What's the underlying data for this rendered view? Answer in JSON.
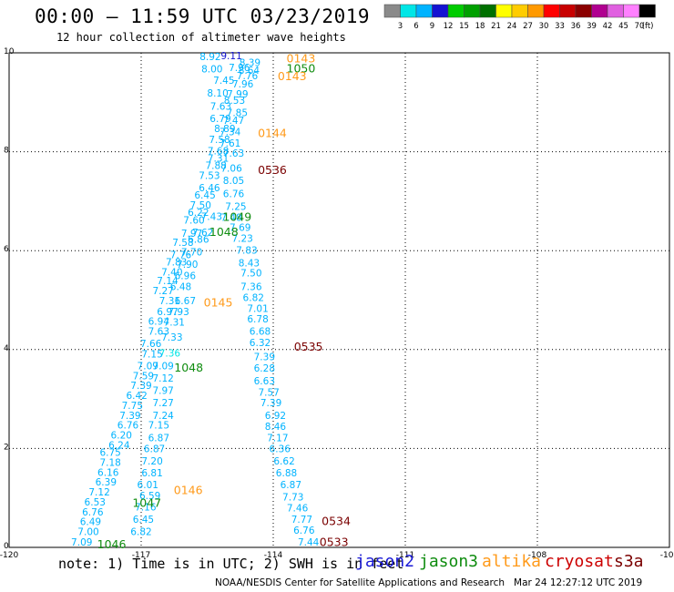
{
  "header": {
    "title": "00:00 – 11:59 UTC 03/23/2019",
    "subtitle": "12 hour collection of altimeter wave heights"
  },
  "footer": {
    "note": "note: 1) Time is in UTC; 2) SWH is in feet",
    "credit": "NOAA/NESDIS Center for Satellite Applications and Research   Mar 24 12:27:12 UTC 2019"
  },
  "satellites": [
    {
      "name": "jason2",
      "color": "#1a1ad6"
    },
    {
      "name": "jason3",
      "color": "#0f8c0f"
    },
    {
      "name": "altika",
      "color": "#ff9a1a"
    },
    {
      "name": "cryosat",
      "color": "#cc0000"
    },
    {
      "name": "s3a",
      "color": "#7a0000"
    }
  ],
  "colorbar": {
    "unit": "(ft)",
    "labels": [
      "3",
      "6",
      "9",
      "12",
      "15",
      "18",
      "21",
      "24",
      "27",
      "30",
      "33",
      "36",
      "39",
      "42",
      "45",
      "70"
    ],
    "colors": [
      "#8a8a8a",
      "#00e6e6",
      "#00b3ff",
      "#1414d2",
      "#00cc00",
      "#00a000",
      "#007000",
      "#ffff00",
      "#ffcc00",
      "#ff9900",
      "#ff0000",
      "#c80000",
      "#8b0000",
      "#b00090",
      "#e060e0",
      "#ff80ff",
      "#000000"
    ]
  },
  "chart_data": {
    "type": "scatter",
    "xlim": [
      -120,
      -105
    ],
    "ylim": [
      0,
      10
    ],
    "xticks": [
      "-120",
      "-117",
      "-114",
      "-111",
      "-108",
      "-105"
    ],
    "xtick_values": [
      -120,
      -117,
      -114,
      -111,
      -108,
      -105
    ],
    "yticks": [
      "0",
      "2",
      "4",
      "6",
      "8",
      "10"
    ],
    "ytick_values": [
      0,
      2,
      4,
      6,
      8,
      10
    ],
    "grid": true,
    "time_labels": [
      {
        "text": "0143",
        "x": -113.7,
        "y": 9.81,
        "color": "#ff9a1a"
      },
      {
        "text": "1050",
        "x": -113.7,
        "y": 9.6,
        "color": "#0f8c0f"
      },
      {
        "text": "0143",
        "x": -113.9,
        "y": 9.45,
        "color": "#ff9a1a"
      },
      {
        "text": "0144",
        "x": -114.35,
        "y": 8.3,
        "color": "#ff9a1a"
      },
      {
        "text": "0536",
        "x": -114.35,
        "y": 7.55,
        "color": "#7a0000"
      },
      {
        "text": "1049",
        "x": -115.15,
        "y": 6.6,
        "color": "#0f8c0f"
      },
      {
        "text": "1048",
        "x": -115.45,
        "y": 6.3,
        "color": "#0f8c0f"
      },
      {
        "text": "0145",
        "x": -115.58,
        "y": 4.87,
        "color": "#ff9a1a"
      },
      {
        "text": "0535",
        "x": -113.53,
        "y": 3.98,
        "color": "#7a0000"
      },
      {
        "text": "1048",
        "x": -116.25,
        "y": 3.55,
        "color": "#0f8c0f"
      },
      {
        "text": "0146",
        "x": -116.26,
        "y": 1.08,
        "color": "#ff9a1a"
      },
      {
        "text": "1047",
        "x": -117.2,
        "y": 0.82,
        "color": "#0f8c0f"
      },
      {
        "text": "0534",
        "x": -112.9,
        "y": 0.45,
        "color": "#7a0000"
      },
      {
        "text": "0533",
        "x": -112.95,
        "y": 0.03,
        "color": "#7a0000"
      },
      {
        "text": "1046",
        "x": -118.0,
        "y": -0.02,
        "color": "#0f8c0f"
      }
    ],
    "points": [
      {
        "x": -115.43,
        "y": 9.85,
        "v": "8.92",
        "c": "#00b3ff"
      },
      {
        "x": -114.95,
        "y": 9.87,
        "v": "9.11",
        "c": "#1414d2"
      },
      {
        "x": -114.53,
        "y": 9.73,
        "v": "8.39",
        "c": "#00b3ff"
      },
      {
        "x": -114.77,
        "y": 9.63,
        "v": "7.96",
        "c": "#00b3ff"
      },
      {
        "x": -115.39,
        "y": 9.6,
        "v": "8.00",
        "c": "#00b3ff"
      },
      {
        "x": -114.55,
        "y": 9.58,
        "v": "8.64",
        "c": "#00b3ff"
      },
      {
        "x": -114.59,
        "y": 9.47,
        "v": "7.76",
        "c": "#00b3ff"
      },
      {
        "x": -115.12,
        "y": 9.37,
        "v": "7.45",
        "c": "#00b3ff"
      },
      {
        "x": -114.69,
        "y": 9.3,
        "v": "7.96",
        "c": "#00b3ff"
      },
      {
        "x": -115.26,
        "y": 9.12,
        "v": "8.10",
        "c": "#00b3ff"
      },
      {
        "x": -114.81,
        "y": 9.1,
        "v": "7.99",
        "c": "#00b3ff"
      },
      {
        "x": -114.88,
        "y": 8.97,
        "v": "8.53",
        "c": "#00b3ff"
      },
      {
        "x": -115.19,
        "y": 8.85,
        "v": "7.63",
        "c": "#00b3ff"
      },
      {
        "x": -114.82,
        "y": 8.72,
        "v": "7.85",
        "c": "#00b3ff"
      },
      {
        "x": -115.2,
        "y": 8.6,
        "v": "6.79",
        "c": "#00b3ff"
      },
      {
        "x": -114.9,
        "y": 8.56,
        "v": "7.47",
        "c": "#00b3ff"
      },
      {
        "x": -115.1,
        "y": 8.4,
        "v": "8.89",
        "c": "#00b3ff"
      },
      {
        "x": -114.98,
        "y": 8.33,
        "v": "7.34",
        "c": "#00b3ff"
      },
      {
        "x": -115.22,
        "y": 8.18,
        "v": "7.58",
        "c": "#00b3ff"
      },
      {
        "x": -114.98,
        "y": 8.1,
        "v": "7.61",
        "c": "#00b3ff"
      },
      {
        "x": -115.25,
        "y": 7.95,
        "v": "7.68",
        "c": "#00b3ff"
      },
      {
        "x": -114.9,
        "y": 7.9,
        "v": "7.63",
        "c": "#00b3ff"
      },
      {
        "x": -115.25,
        "y": 7.8,
        "v": "7.31",
        "c": "#00b3ff"
      },
      {
        "x": -115.3,
        "y": 7.65,
        "v": "7.88",
        "c": "#00b3ff"
      },
      {
        "x": -114.95,
        "y": 7.6,
        "v": "7.06",
        "c": "#00b3ff"
      },
      {
        "x": -115.45,
        "y": 7.45,
        "v": "7.53",
        "c": "#00b3ff"
      },
      {
        "x": -114.9,
        "y": 7.35,
        "v": "8.05",
        "c": "#00b3ff"
      },
      {
        "x": -115.45,
        "y": 7.2,
        "v": "6.46",
        "c": "#00b3ff"
      },
      {
        "x": -115.55,
        "y": 7.05,
        "v": "6.45",
        "c": "#00b3ff"
      },
      {
        "x": -114.9,
        "y": 7.08,
        "v": "6.76",
        "c": "#00b3ff"
      },
      {
        "x": -115.65,
        "y": 6.85,
        "v": "7.50",
        "c": "#00b3ff"
      },
      {
        "x": -114.85,
        "y": 6.82,
        "v": "7.25",
        "c": "#00b3ff"
      },
      {
        "x": -115.7,
        "y": 6.7,
        "v": "6.22",
        "c": "#00b3ff"
      },
      {
        "x": -115.4,
        "y": 6.62,
        "v": "7.43",
        "c": "#00b3ff"
      },
      {
        "x": -114.95,
        "y": 6.6,
        "v": "7.48",
        "c": "#00b3ff"
      },
      {
        "x": -115.8,
        "y": 6.55,
        "v": "7.60",
        "c": "#00b3ff"
      },
      {
        "x": -115.6,
        "y": 6.3,
        "v": "7.62",
        "c": "#00b3ff"
      },
      {
        "x": -114.75,
        "y": 6.4,
        "v": "7.69",
        "c": "#00b3ff"
      },
      {
        "x": -115.85,
        "y": 6.28,
        "v": "7.97",
        "c": "#00b3ff"
      },
      {
        "x": -115.7,
        "y": 6.16,
        "v": "6.86",
        "c": "#00b3ff"
      },
      {
        "x": -114.7,
        "y": 6.18,
        "v": "7.23",
        "c": "#00b3ff"
      },
      {
        "x": -116.05,
        "y": 6.1,
        "v": "7.58",
        "c": "#00b3ff"
      },
      {
        "x": -115.85,
        "y": 5.9,
        "v": "7.70",
        "c": "#00b3ff"
      },
      {
        "x": -116.1,
        "y": 5.85,
        "v": "7.76",
        "c": "#00b3ff"
      },
      {
        "x": -114.6,
        "y": 5.94,
        "v": "7.83",
        "c": "#00b3ff"
      },
      {
        "x": -116.2,
        "y": 5.7,
        "v": "7.83",
        "c": "#00b3ff"
      },
      {
        "x": -115.95,
        "y": 5.65,
        "v": "7.90",
        "c": "#00b3ff"
      },
      {
        "x": -114.55,
        "y": 5.68,
        "v": "8.43",
        "c": "#00b3ff"
      },
      {
        "x": -116.3,
        "y": 5.5,
        "v": "7.40",
        "c": "#00b3ff"
      },
      {
        "x": -116.0,
        "y": 5.42,
        "v": "6.96",
        "c": "#00b3ff"
      },
      {
        "x": -114.5,
        "y": 5.48,
        "v": "7.50",
        "c": "#00b3ff"
      },
      {
        "x": -116.4,
        "y": 5.32,
        "v": "7.14",
        "c": "#00b3ff"
      },
      {
        "x": -116.1,
        "y": 5.2,
        "v": "6.48",
        "c": "#00b3ff"
      },
      {
        "x": -114.5,
        "y": 5.2,
        "v": "7.36",
        "c": "#00b3ff"
      },
      {
        "x": -116.5,
        "y": 5.12,
        "v": "7.27",
        "c": "#00b3ff"
      },
      {
        "x": -114.45,
        "y": 4.98,
        "v": "6.82",
        "c": "#00b3ff"
      },
      {
        "x": -116.35,
        "y": 4.92,
        "v": "7.31",
        "c": "#00b3ff"
      },
      {
        "x": -116.0,
        "y": 4.92,
        "v": "6.67",
        "c": "#00b3ff"
      },
      {
        "x": -114.35,
        "y": 4.76,
        "v": "7.01",
        "c": "#00b3ff"
      },
      {
        "x": -116.4,
        "y": 4.7,
        "v": "6.97",
        "c": "#00b3ff"
      },
      {
        "x": -116.15,
        "y": 4.7,
        "v": "7.93",
        "c": "#00b3ff"
      },
      {
        "x": -114.35,
        "y": 4.55,
        "v": "6.78",
        "c": "#00b3ff"
      },
      {
        "x": -116.6,
        "y": 4.5,
        "v": "6.94",
        "c": "#00b3ff"
      },
      {
        "x": -116.25,
        "y": 4.48,
        "v": "7.31",
        "c": "#00b3ff"
      },
      {
        "x": -114.3,
        "y": 4.3,
        "v": "6.68",
        "c": "#00b3ff"
      },
      {
        "x": -116.6,
        "y": 4.3,
        "v": "7.63",
        "c": "#00b3ff"
      },
      {
        "x": -116.3,
        "y": 4.18,
        "v": "7.33",
        "c": "#00b3ff"
      },
      {
        "x": -114.3,
        "y": 4.07,
        "v": "6.32",
        "c": "#00b3ff"
      },
      {
        "x": -116.78,
        "y": 4.05,
        "v": "7.66",
        "c": "#00b3ff"
      },
      {
        "x": -116.35,
        "y": 3.86,
        "v": "7.36",
        "c": "#00e6e6"
      },
      {
        "x": -116.75,
        "y": 3.84,
        "v": "7.15",
        "c": "#00b3ff"
      },
      {
        "x": -114.2,
        "y": 3.78,
        "v": "7.39",
        "c": "#00b3ff"
      },
      {
        "x": -116.85,
        "y": 3.6,
        "v": "7.09",
        "c": "#00b3ff"
      },
      {
        "x": -116.5,
        "y": 3.6,
        "v": "7.09",
        "c": "#00b3ff"
      },
      {
        "x": -114.2,
        "y": 3.55,
        "v": "6.28",
        "c": "#00b3ff"
      },
      {
        "x": -116.95,
        "y": 3.4,
        "v": "7.59",
        "c": "#00b3ff"
      },
      {
        "x": -116.5,
        "y": 3.35,
        "v": "7.12",
        "c": "#00b3ff"
      },
      {
        "x": -114.2,
        "y": 3.3,
        "v": "6.63",
        "c": "#00b3ff"
      },
      {
        "x": -117.0,
        "y": 3.2,
        "v": "7.39",
        "c": "#00b3ff"
      },
      {
        "x": -116.5,
        "y": 3.1,
        "v": "7.97",
        "c": "#00b3ff"
      },
      {
        "x": -114.1,
        "y": 3.07,
        "v": "7.57",
        "c": "#00b3ff"
      },
      {
        "x": -117.1,
        "y": 3.0,
        "v": "6.42",
        "c": "#00b3ff"
      },
      {
        "x": -116.5,
        "y": 2.85,
        "v": "7.27",
        "c": "#00b3ff"
      },
      {
        "x": -114.05,
        "y": 2.85,
        "v": "7.39",
        "c": "#00b3ff"
      },
      {
        "x": -117.2,
        "y": 2.8,
        "v": "7.75",
        "c": "#00b3ff"
      },
      {
        "x": -116.5,
        "y": 2.6,
        "v": "7.24",
        "c": "#00b3ff"
      },
      {
        "x": -117.25,
        "y": 2.6,
        "v": "7.39",
        "c": "#00b3ff"
      },
      {
        "x": -113.95,
        "y": 2.6,
        "v": "6.92",
        "c": "#00b3ff"
      },
      {
        "x": -117.3,
        "y": 2.4,
        "v": "6.76",
        "c": "#00b3ff"
      },
      {
        "x": -116.6,
        "y": 2.4,
        "v": "7.15",
        "c": "#00b3ff"
      },
      {
        "x": -113.95,
        "y": 2.38,
        "v": "8.46",
        "c": "#00b3ff"
      },
      {
        "x": -117.45,
        "y": 2.2,
        "v": "6.20",
        "c": "#00b3ff"
      },
      {
        "x": -116.6,
        "y": 2.15,
        "v": "6.87",
        "c": "#00b3ff"
      },
      {
        "x": -113.9,
        "y": 2.15,
        "v": "7.17",
        "c": "#00b3ff"
      },
      {
        "x": -117.5,
        "y": 2.0,
        "v": "6.24",
        "c": "#00b3ff"
      },
      {
        "x": -116.7,
        "y": 1.92,
        "v": "6.87",
        "c": "#00b3ff"
      },
      {
        "x": -113.85,
        "y": 1.92,
        "v": "6.36",
        "c": "#00b3ff"
      },
      {
        "x": -117.7,
        "y": 1.85,
        "v": "6.75",
        "c": "#00b3ff"
      },
      {
        "x": -116.75,
        "y": 1.68,
        "v": "7.20",
        "c": "#00b3ff"
      },
      {
        "x": -113.75,
        "y": 1.68,
        "v": "6.62",
        "c": "#00b3ff"
      },
      {
        "x": -117.7,
        "y": 1.65,
        "v": "7.18",
        "c": "#00b3ff"
      },
      {
        "x": -117.75,
        "y": 1.45,
        "v": "6.16",
        "c": "#00b3ff"
      },
      {
        "x": -116.75,
        "y": 1.44,
        "v": "6.81",
        "c": "#00b3ff"
      },
      {
        "x": -113.7,
        "y": 1.44,
        "v": "6.88",
        "c": "#00b3ff"
      },
      {
        "x": -117.8,
        "y": 1.25,
        "v": "6.39",
        "c": "#00b3ff"
      },
      {
        "x": -116.85,
        "y": 1.2,
        "v": "6.01",
        "c": "#00b3ff"
      },
      {
        "x": -113.6,
        "y": 1.2,
        "v": "6.87",
        "c": "#00b3ff"
      },
      {
        "x": -117.95,
        "y": 1.05,
        "v": "7.12",
        "c": "#00b3ff"
      },
      {
        "x": -116.8,
        "y": 0.98,
        "v": "6.59",
        "c": "#00b3ff"
      },
      {
        "x": -113.55,
        "y": 0.95,
        "v": "7.73",
        "c": "#00b3ff"
      },
      {
        "x": -118.05,
        "y": 0.85,
        "v": "6.53",
        "c": "#00b3ff"
      },
      {
        "x": -116.9,
        "y": 0.75,
        "v": "7.16",
        "c": "#00b3ff"
      },
      {
        "x": -113.45,
        "y": 0.73,
        "v": "7.46",
        "c": "#00b3ff"
      },
      {
        "x": -118.1,
        "y": 0.64,
        "v": "6.76",
        "c": "#00b3ff"
      },
      {
        "x": -116.95,
        "y": 0.5,
        "v": "6.45",
        "c": "#00b3ff"
      },
      {
        "x": -113.35,
        "y": 0.5,
        "v": "7.77",
        "c": "#00b3ff"
      },
      {
        "x": -118.15,
        "y": 0.45,
        "v": "6.49",
        "c": "#00b3ff"
      },
      {
        "x": -117.0,
        "y": 0.25,
        "v": "6.82",
        "c": "#00b3ff"
      },
      {
        "x": -113.3,
        "y": 0.28,
        "v": "6.76",
        "c": "#00b3ff"
      },
      {
        "x": -118.2,
        "y": 0.25,
        "v": "7.00",
        "c": "#00b3ff"
      },
      {
        "x": -118.35,
        "y": 0.04,
        "v": "7.09",
        "c": "#00b3ff"
      },
      {
        "x": -113.2,
        "y": 0.04,
        "v": "7.44",
        "c": "#00b3ff"
      }
    ]
  }
}
